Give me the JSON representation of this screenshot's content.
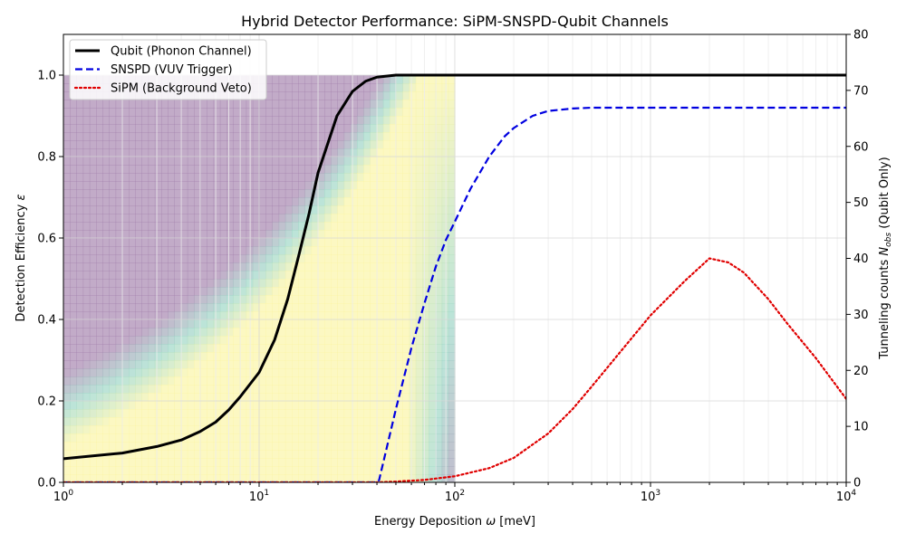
{
  "chart_data": {
    "type": "line",
    "title": "Hybrid Detector Performance: SiPM-SNSPD-Qubit Channels",
    "xlabel_prefix": "Energy Deposition ",
    "xlabel_symbol": "ω",
    "xlabel_unit": " [meV]",
    "ylabel_prefix": "Detection Efficiency ",
    "ylabel_symbol": "ε",
    "y2label_prefix": "Tunneling counts ",
    "y2label_symbol": "N",
    "y2label_subscript": "obs",
    "y2label_suffix": " (Qubit Only)",
    "x_scale": "log",
    "xlim": [
      1,
      10000
    ],
    "ylim": [
      0,
      1.1
    ],
    "y2lim": [
      0,
      80
    ],
    "x_tick_base": "10",
    "x_ticks": [
      {
        "value": 1,
        "exp": "0"
      },
      {
        "value": 10,
        "exp": "1"
      },
      {
        "value": 100,
        "exp": "2"
      },
      {
        "value": 1000,
        "exp": "3"
      },
      {
        "value": 10000,
        "exp": "4"
      }
    ],
    "y_ticks": [
      {
        "value": 0,
        "label": "0.0"
      },
      {
        "value": 0.2,
        "label": "0.2"
      },
      {
        "value": 0.4,
        "label": "0.4"
      },
      {
        "value": 0.6,
        "label": "0.6"
      },
      {
        "value": 0.8,
        "label": "0.8"
      },
      {
        "value": 1.0,
        "label": "1.0"
      }
    ],
    "y2_ticks": [
      {
        "value": 0,
        "label": "0"
      },
      {
        "value": 10,
        "label": "10"
      },
      {
        "value": 20,
        "label": "20"
      },
      {
        "value": 30,
        "label": "30"
      },
      {
        "value": 40,
        "label": "40"
      },
      {
        "value": 50,
        "label": "50"
      },
      {
        "value": 60,
        "label": "60"
      },
      {
        "value": 70,
        "label": "70"
      },
      {
        "value": 80,
        "label": "80"
      }
    ],
    "grid": true,
    "legend_position": "top-left",
    "heatmap": {
      "x_range": [
        1,
        100
      ],
      "y_range": [
        0,
        1.0
      ],
      "colors": [
        "#a888b0",
        "#9fd8c8",
        "#fbf5a8"
      ],
      "description_free": true
    },
    "series": [
      {
        "name": "Qubit (Phonon Channel)",
        "color": "#000000",
        "dash": "solid",
        "width": 3,
        "axis": "left",
        "x": [
          1,
          2,
          3,
          4,
          5,
          6,
          7,
          8,
          10,
          12,
          14,
          16,
          18,
          20,
          25,
          30,
          35,
          40,
          50,
          60,
          100,
          1000,
          10000
        ],
        "y": [
          0.058,
          0.072,
          0.088,
          0.104,
          0.125,
          0.148,
          0.178,
          0.21,
          0.27,
          0.35,
          0.45,
          0.56,
          0.66,
          0.76,
          0.9,
          0.96,
          0.985,
          0.995,
          1.0,
          1.0,
          1.0,
          1.0,
          1.0
        ]
      },
      {
        "name": "SNSPD (VUV Trigger)",
        "color": "#0000e0",
        "dash": "dashed",
        "width": 2.2,
        "axis": "left",
        "x": [
          1,
          10,
          40,
          41,
          50,
          60,
          70,
          80,
          90,
          100,
          120,
          150,
          180,
          200,
          250,
          300,
          400,
          500,
          1000,
          10000
        ],
        "y": [
          0,
          0,
          0,
          0.005,
          0.18,
          0.33,
          0.44,
          0.53,
          0.595,
          0.64,
          0.72,
          0.8,
          0.85,
          0.87,
          0.9,
          0.912,
          0.918,
          0.92,
          0.92,
          0.92
        ]
      },
      {
        "name": "SiPM (Background Veto)",
        "color": "#e00000",
        "dash": "dotted",
        "width": 2.2,
        "axis": "left",
        "x": [
          1,
          20,
          40,
          50,
          70,
          100,
          150,
          200,
          300,
          400,
          500,
          700,
          1000,
          1500,
          2000,
          2500,
          3000,
          4000,
          5000,
          7000,
          10000
        ],
        "y": [
          0,
          0,
          0,
          0.002,
          0.006,
          0.015,
          0.035,
          0.06,
          0.12,
          0.18,
          0.235,
          0.32,
          0.41,
          0.495,
          0.55,
          0.54,
          0.515,
          0.45,
          0.39,
          0.305,
          0.205
        ]
      }
    ]
  }
}
